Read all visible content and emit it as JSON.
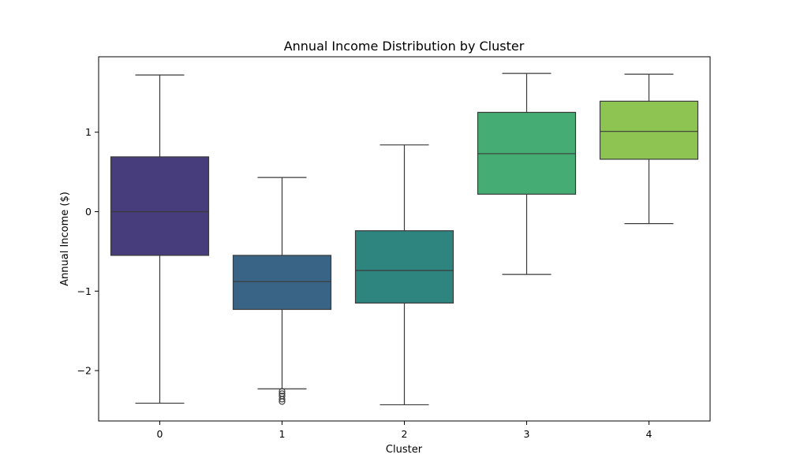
{
  "chart_data": {
    "type": "box",
    "title": "Annual Income Distribution by Cluster",
    "xlabel": "Cluster",
    "ylabel": "Annual Income ($)",
    "ylim": [
      -2.6,
      1.95
    ],
    "yticks": [
      1,
      0,
      -1,
      -2
    ],
    "ytick_labels": [
      "1",
      "0",
      "−1",
      "−2"
    ],
    "categories": [
      "0",
      "1",
      "2",
      "3",
      "4"
    ],
    "boxes": [
      {
        "category": "0",
        "whisker_low": -2.41,
        "q1": -0.55,
        "median": 0.0,
        "q3": 0.69,
        "whisker_high": 1.72,
        "outliers": [],
        "color": "#483d7c"
      },
      {
        "category": "1",
        "whisker_low": -2.23,
        "q1": -1.23,
        "median": -0.88,
        "q3": -0.55,
        "whisker_high": 0.43,
        "outliers": [
          -2.26,
          -2.29,
          -2.32,
          -2.36,
          -2.39
        ],
        "color": "#3a6485"
      },
      {
        "category": "2",
        "whisker_low": -2.43,
        "q1": -1.15,
        "median": -0.74,
        "q3": -0.24,
        "whisker_high": 0.84,
        "outliers": [],
        "color": "#2e8580"
      },
      {
        "category": "3",
        "whisker_low": -0.79,
        "q1": 0.22,
        "median": 0.73,
        "q3": 1.25,
        "whisker_high": 1.74,
        "outliers": [],
        "color": "#45ad74"
      },
      {
        "category": "4",
        "whisker_low": -0.15,
        "q1": 0.66,
        "median": 1.01,
        "q3": 1.39,
        "whisker_high": 1.73,
        "outliers": [],
        "color": "#8ec552"
      }
    ]
  }
}
